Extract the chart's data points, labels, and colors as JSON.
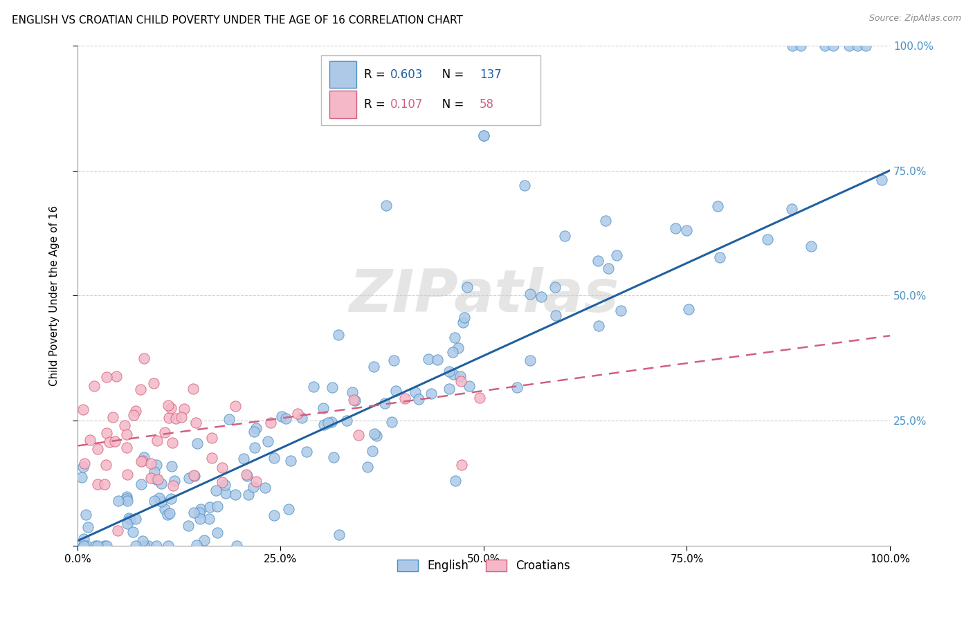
{
  "title": "ENGLISH VS CROATIAN CHILD POVERTY UNDER THE AGE OF 16 CORRELATION CHART",
  "source": "Source: ZipAtlas.com",
  "ylabel": "Child Poverty Under the Age of 16",
  "xlim": [
    0.0,
    1.0
  ],
  "ylim": [
    0.0,
    1.0
  ],
  "xtick_labels": [
    "0.0%",
    "25.0%",
    "50.0%",
    "75.0%",
    "100.0%"
  ],
  "xtick_positions": [
    0.0,
    0.25,
    0.5,
    0.75,
    1.0
  ],
  "right_ytick_labels": [
    "100.0%",
    "75.0%",
    "50.0%",
    "25.0%"
  ],
  "right_ytick_positions": [
    1.0,
    0.75,
    0.5,
    0.25
  ],
  "english_R": 0.603,
  "english_N": 137,
  "croatian_R": 0.107,
  "croatian_N": 58,
  "english_fill_color": "#aec9e8",
  "english_edge_color": "#4a90c4",
  "croatian_fill_color": "#f4b8c8",
  "croatian_edge_color": "#d4607a",
  "english_line_color": "#2060a0",
  "croatian_line_color": "#d06080",
  "watermark": "ZIPatlas",
  "english_trend_x": [
    0.0,
    1.0
  ],
  "english_trend_y": [
    0.01,
    0.75
  ],
  "croatian_trend_x": [
    0.0,
    1.0
  ],
  "croatian_trend_y": [
    0.2,
    0.42
  ],
  "grid_color": "#cccccc",
  "right_axis_color": "#4a90c4",
  "legend_eng_label": "English",
  "legend_cro_label": "Croatians"
}
